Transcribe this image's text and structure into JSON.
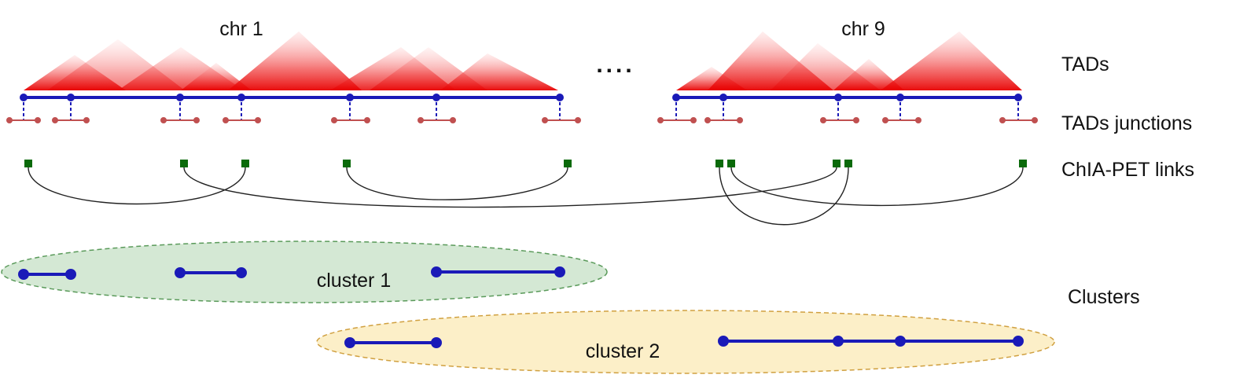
{
  "chromosomes": [
    {
      "id": "chr1",
      "label": "chr 1"
    },
    {
      "id": "chr9",
      "label": "chr 9"
    }
  ],
  "ellipsis": "....",
  "row_labels": {
    "tads": "TADs",
    "junctions": "TADs junctions",
    "links": "ChIA-PET links",
    "clusters": "Clusters"
  },
  "clusters": [
    {
      "id": "cluster1",
      "label": "cluster 1"
    },
    {
      "id": "cluster2",
      "label": "cluster 2"
    }
  ],
  "colors": {
    "heatmap": "#ee1c1c",
    "track": "#1a1ab8",
    "junction": "#c05050",
    "link_node": "#0a6a0a",
    "link_arc": "#222222",
    "cluster1_fill": "#d4e8d4",
    "cluster1_border": "#5a9a5a",
    "cluster2_fill": "#fcefc8",
    "cluster2_border": "#d0a040"
  }
}
